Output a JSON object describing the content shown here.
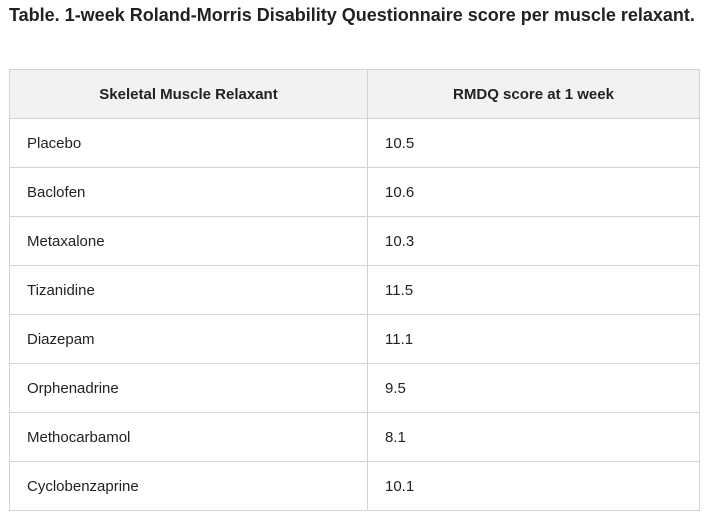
{
  "title": "Table. 1-week Roland-Morris Disability Questionnaire score per muscle relaxant.",
  "table": {
    "headers": [
      "Skeletal Muscle Relaxant",
      "RMDQ score at 1 week"
    ],
    "rows": [
      [
        "Placebo",
        "10.5"
      ],
      [
        "Baclofen",
        "10.6"
      ],
      [
        "Metaxalone",
        "10.3"
      ],
      [
        "Tizanidine",
        "11.5"
      ],
      [
        "Diazepam",
        "11.1"
      ],
      [
        "Orphenadrine",
        "9.5"
      ],
      [
        "Methocarbamol",
        "8.1"
      ],
      [
        "Cyclobenzaprine",
        "10.1"
      ]
    ]
  }
}
